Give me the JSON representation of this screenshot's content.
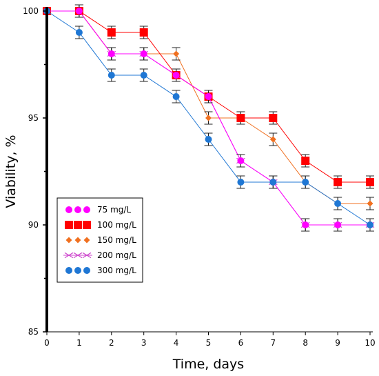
{
  "chart_data": {
    "type": "line",
    "xlabel": "Time, days",
    "ylabel": "Viability, %",
    "xlim": [
      0,
      10
    ],
    "ylim": [
      85,
      100
    ],
    "x_ticks": [
      0,
      1,
      2,
      3,
      4,
      5,
      6,
      7,
      8,
      9,
      10
    ],
    "y_ticks": [
      85,
      90,
      95,
      100
    ],
    "x": [
      0,
      1,
      2,
      3,
      4,
      5,
      6,
      7,
      8,
      9,
      10
    ],
    "error_bars": true,
    "legend_position": "bottom-left",
    "grid": false,
    "series": [
      {
        "name": "75 mg/L",
        "color": "#ff00ff",
        "marker": "circle",
        "values": [
          100,
          100,
          98,
          98,
          97,
          96,
          93,
          92,
          90,
          90,
          90
        ]
      },
      {
        "name": "100 mg/L",
        "color": "#ff0000",
        "marker": "square",
        "values": [
          100,
          100,
          99,
          99,
          97,
          96,
          95,
          95,
          93,
          92,
          92
        ]
      },
      {
        "name": "150 mg/L",
        "color": "#f07020",
        "marker": "diamond",
        "values": [
          100,
          100,
          98,
          98,
          98,
          95,
          95,
          94,
          92,
          91,
          91
        ]
      },
      {
        "name": "200 mg/L",
        "color": "#cc44cc",
        "marker": "x",
        "values": [
          100,
          100,
          98,
          98,
          97,
          96,
          93,
          92,
          90,
          90,
          90
        ]
      },
      {
        "name": "300 mg/L",
        "color": "#1f77d4",
        "marker": "circle",
        "values": [
          100,
          99,
          97,
          97,
          96,
          94,
          92,
          92,
          92,
          91,
          90
        ]
      }
    ]
  }
}
